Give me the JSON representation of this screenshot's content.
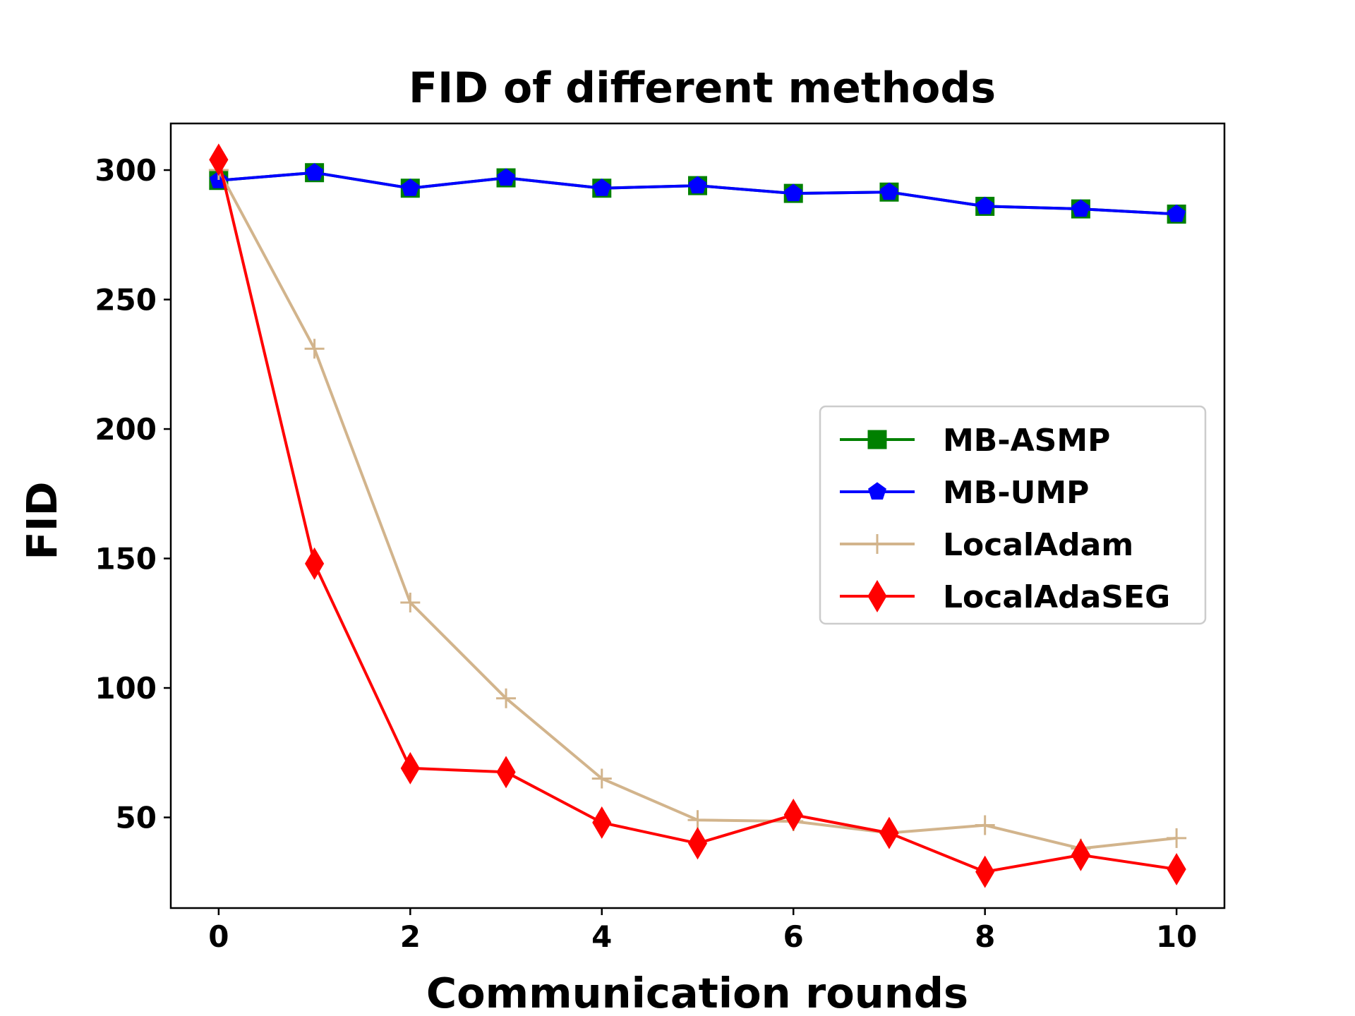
{
  "chart_data": {
    "type": "line",
    "title": "FID of different methods",
    "xlabel": "Communication rounds",
    "ylabel": "FID",
    "x": [
      0,
      1,
      2,
      3,
      4,
      5,
      6,
      7,
      8,
      9,
      10
    ],
    "xlim": [
      -0.5,
      10.5
    ],
    "ylim": [
      15,
      318
    ],
    "xticks": [
      0,
      2,
      4,
      6,
      8,
      10
    ],
    "yticks": [
      50,
      100,
      150,
      200,
      250,
      300
    ],
    "grid": false,
    "legend_position": "center-right",
    "series": [
      {
        "name": "MB-ASMP",
        "color": "#008000",
        "marker": "square",
        "values": [
          296,
          299,
          293,
          297,
          293,
          294,
          291,
          291.5,
          286,
          285,
          283
        ]
      },
      {
        "name": "MB-UMP",
        "color": "#0000ff",
        "marker": "pentagon",
        "values": [
          296,
          299,
          293,
          297,
          293,
          294,
          291,
          291.5,
          286,
          285,
          283
        ]
      },
      {
        "name": "LocalAdam",
        "color": "#d2b48c",
        "marker": "plus",
        "values": [
          300,
          231,
          133,
          96,
          65,
          49,
          48.5,
          44,
          47,
          38,
          42
        ]
      },
      {
        "name": "LocalAdaSEG",
        "color": "#ff0000",
        "marker": "diamond",
        "values": [
          304,
          148,
          69,
          67.5,
          48,
          40,
          51,
          44,
          29,
          35.5,
          30
        ]
      }
    ]
  }
}
